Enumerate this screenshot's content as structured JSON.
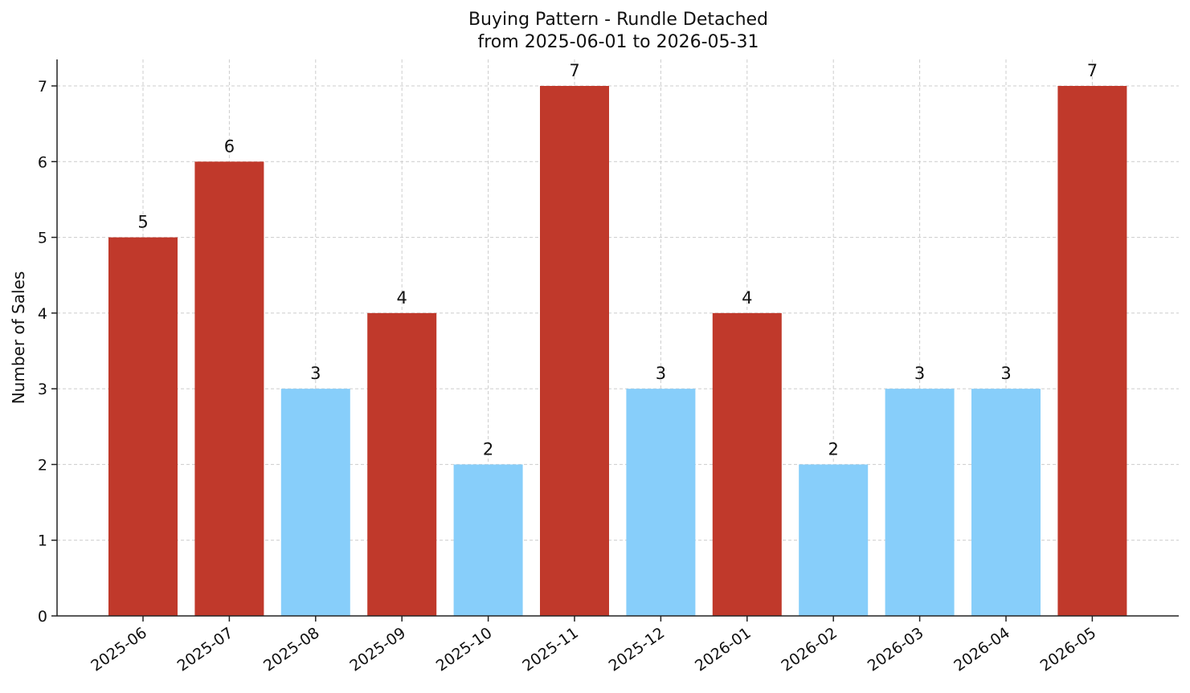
{
  "chart_data": {
    "type": "bar",
    "title": "Buying Pattern - Rundle Detached",
    "subtitle": "from 2025-06-01 to 2026-05-31",
    "xlabel": "",
    "ylabel": "Number of Sales",
    "ylim": [
      0,
      7.35
    ],
    "yticks": [
      0,
      1,
      2,
      3,
      4,
      5,
      6,
      7
    ],
    "grid": true,
    "categories": [
      "2025-06",
      "2025-07",
      "2025-08",
      "2025-09",
      "2025-10",
      "2025-11",
      "2025-12",
      "2026-01",
      "2026-02",
      "2026-03",
      "2026-04",
      "2026-05"
    ],
    "values": [
      5,
      6,
      3,
      4,
      2,
      7,
      3,
      4,
      2,
      3,
      3,
      7
    ],
    "bar_colors": [
      "#c0392b",
      "#c0392b",
      "#87cefa",
      "#c0392b",
      "#87cefa",
      "#c0392b",
      "#87cefa",
      "#c0392b",
      "#87cefa",
      "#87cefa",
      "#87cefa",
      "#c0392b"
    ],
    "data_labels": true
  }
}
